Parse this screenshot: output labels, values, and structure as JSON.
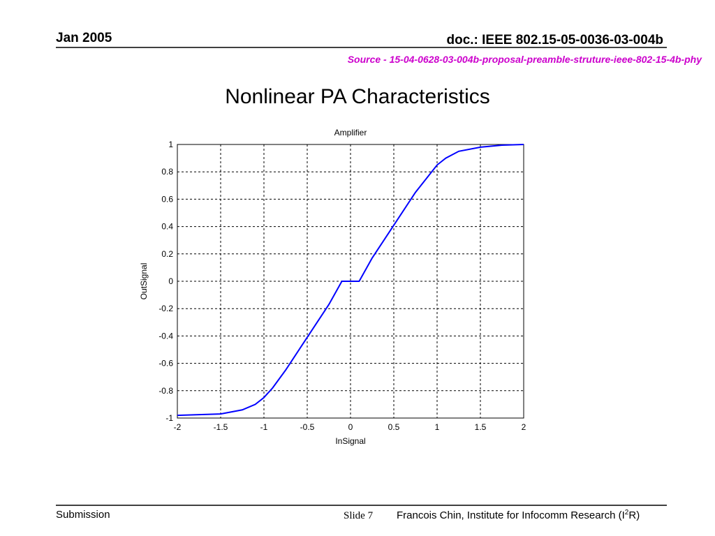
{
  "header": {
    "date": "Jan 2005",
    "doc": "doc.: IEEE 802.15-05-0036-03-004b",
    "source": "Source - 15-04-0628-03-004b-proposal-preamble-struture-ieee-802-15-4b-phy"
  },
  "slide_title": "Nonlinear PA Characteristics",
  "chart_data": {
    "type": "line",
    "title": "Amplifier",
    "x_label": "InSignal",
    "y_label": "OutSignal",
    "x": [
      -2,
      -1.75,
      -1.5,
      -1.25,
      -1.1,
      -1,
      -0.9,
      -0.75,
      -0.5,
      -0.25,
      -0.1,
      0.1,
      0.25,
      0.5,
      0.75,
      1,
      1.1,
      1.25,
      1.5,
      1.75,
      2
    ],
    "series": [
      {
        "color": "#0000ff",
        "values": [
          -0.98,
          -0.975,
          -0.97,
          -0.94,
          -0.9,
          -0.85,
          -0.78,
          -0.65,
          -0.41,
          -0.17,
          0,
          0,
          0.17,
          0.41,
          0.65,
          0.85,
          0.9,
          0.95,
          0.98,
          0.995,
          1
        ]
      }
    ],
    "xlim": [
      -2,
      2
    ],
    "xticks": [
      -2,
      -1.5,
      -1,
      -0.5,
      0,
      0.5,
      1,
      1.5,
      2
    ],
    "ylim": [
      -1,
      1
    ],
    "yticks": [
      -1,
      -0.8,
      -0.6,
      -0.4,
      -0.2,
      0,
      0.2,
      0.4,
      0.6,
      0.8,
      1
    ],
    "grid": true
  },
  "footer": {
    "left": "Submission",
    "slide": "Slide 7",
    "author": [
      "Francois Chin, Institute for Infocomm Research (I",
      "2",
      "R)"
    ]
  }
}
